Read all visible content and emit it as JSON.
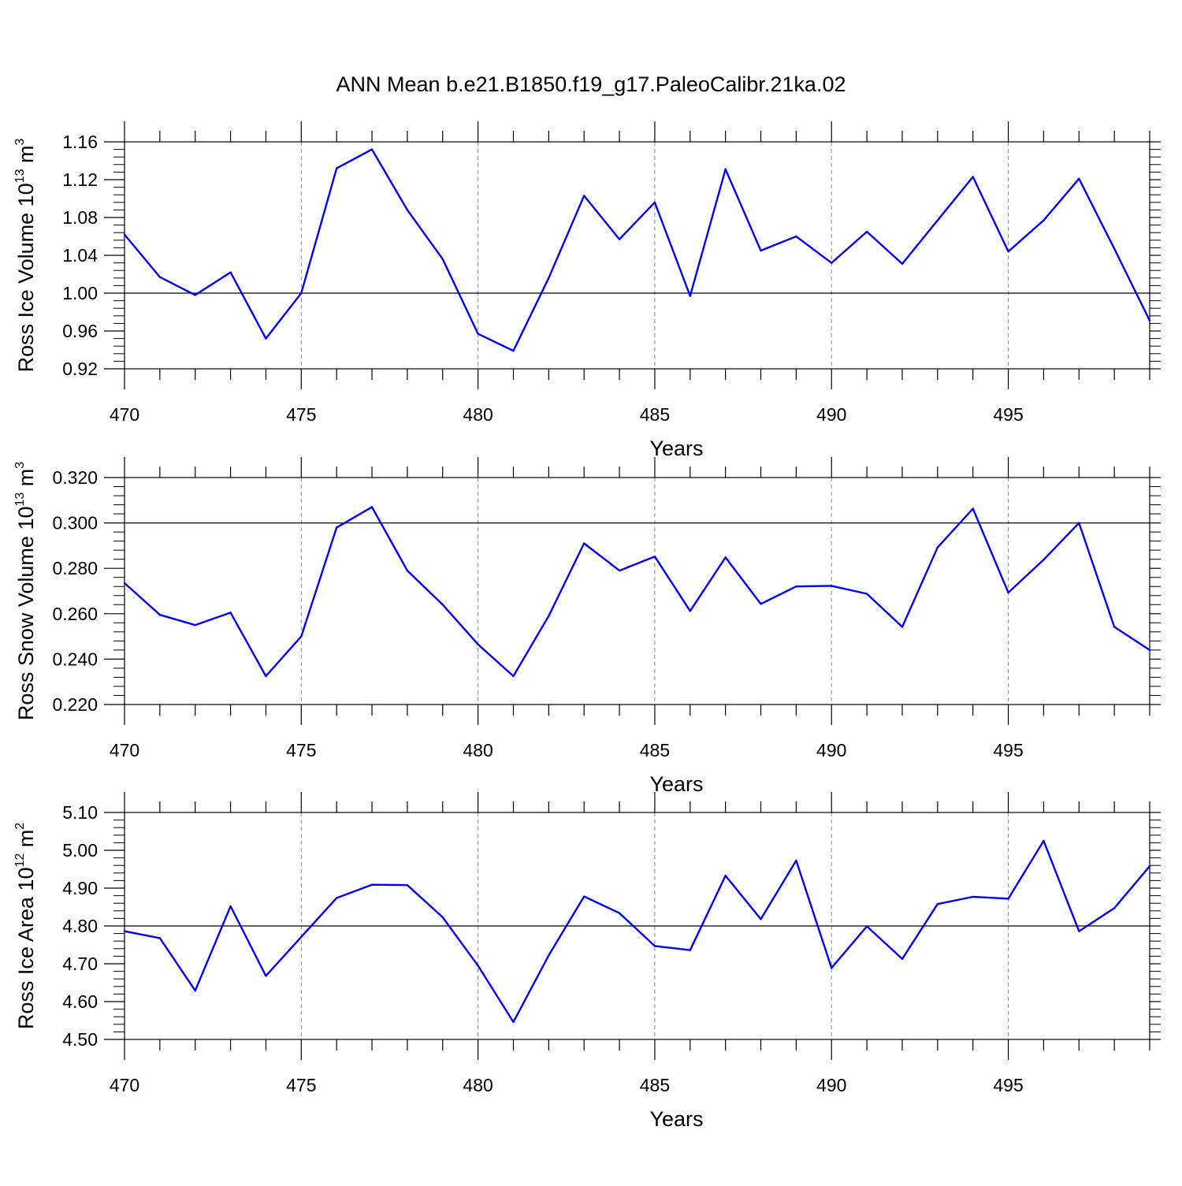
{
  "title": "ANN Mean b.e21.B1850.f19_g17.PaleoCalibr.21ka.02",
  "colors": {
    "series": "#0000ff",
    "axes": "#000000",
    "grid": "#888888"
  },
  "chart_data": [
    {
      "type": "line",
      "xlabel": "Years",
      "ylabel_main": "Ross Ice Volume 10",
      "ylabel_exp": "13",
      "ylabel_unit": " m",
      "ylabel_unit_exp": "3",
      "xlim": [
        470,
        499
      ],
      "ylim": [
        0.92,
        1.16
      ],
      "xticks": [
        470,
        475,
        480,
        485,
        490,
        495
      ],
      "yticks": [
        "0.92",
        "0.96",
        "1.00",
        "1.04",
        "1.08",
        "1.12",
        "1.16"
      ],
      "reference_y": 1.0,
      "x": [
        470,
        471,
        472,
        473,
        474,
        475,
        476,
        477,
        478,
        479,
        480,
        481,
        482,
        483,
        484,
        485,
        486,
        487,
        488,
        489,
        490,
        491,
        492,
        493,
        494,
        495,
        496,
        497,
        498,
        499
      ],
      "values": [
        1.062,
        1.017,
        0.998,
        1.022,
        0.952,
        1.0,
        1.132,
        1.152,
        1.088,
        1.036,
        0.957,
        0.939,
        1.016,
        1.103,
        1.057,
        1.096,
        0.997,
        1.131,
        1.045,
        1.06,
        1.032,
        1.065,
        1.031,
        1.077,
        1.123,
        1.044,
        1.077,
        1.121,
        1.047,
        0.971
      ]
    },
    {
      "type": "line",
      "xlabel": "Years",
      "ylabel_main": "Ross Snow Volume 10",
      "ylabel_exp": "13",
      "ylabel_unit": " m",
      "ylabel_unit_exp": "3",
      "xlim": [
        470,
        499
      ],
      "ylim": [
        0.22,
        0.32
      ],
      "xticks": [
        470,
        475,
        480,
        485,
        490,
        495
      ],
      "yticks": [
        "0.220",
        "0.240",
        "0.260",
        "0.280",
        "0.300",
        "0.320"
      ],
      "reference_y": 0.3,
      "x": [
        470,
        471,
        472,
        473,
        474,
        475,
        476,
        477,
        478,
        479,
        480,
        481,
        482,
        483,
        484,
        485,
        486,
        487,
        488,
        489,
        490,
        491,
        492,
        493,
        494,
        495,
        496,
        497,
        498,
        499
      ],
      "values": [
        0.2735,
        0.2595,
        0.255,
        0.2605,
        0.2325,
        0.25,
        0.298,
        0.307,
        0.279,
        0.264,
        0.2465,
        0.2325,
        0.259,
        0.291,
        0.279,
        0.2852,
        0.2612,
        0.2848,
        0.2643,
        0.272,
        0.2723,
        0.2688,
        0.2542,
        0.2892,
        0.3063,
        0.2693,
        0.2838,
        0.3,
        0.2542,
        0.244
      ]
    },
    {
      "type": "line",
      "xlabel": "Years",
      "ylabel_main": "Ross Ice Area 10",
      "ylabel_exp": "12",
      "ylabel_unit": " m",
      "ylabel_unit_exp": "2",
      "xlim": [
        470,
        499
      ],
      "ylim": [
        4.5,
        5.1
      ],
      "xticks": [
        470,
        475,
        480,
        485,
        490,
        495
      ],
      "yticks": [
        "4.50",
        "4.60",
        "4.70",
        "4.80",
        "4.90",
        "5.00",
        "5.10"
      ],
      "reference_y": 4.8,
      "x": [
        470,
        471,
        472,
        473,
        474,
        475,
        476,
        477,
        478,
        479,
        480,
        481,
        482,
        483,
        484,
        485,
        486,
        487,
        488,
        489,
        490,
        491,
        492,
        493,
        494,
        495,
        496,
        497,
        498,
        499
      ],
      "values": [
        4.786,
        4.768,
        4.629,
        4.852,
        4.668,
        4.771,
        4.874,
        4.909,
        4.908,
        4.823,
        4.695,
        4.546,
        4.722,
        4.878,
        4.834,
        4.747,
        4.736,
        4.933,
        4.818,
        4.973,
        4.689,
        4.799,
        4.713,
        4.858,
        4.877,
        4.872,
        5.025,
        4.786,
        4.847,
        4.958
      ]
    }
  ]
}
